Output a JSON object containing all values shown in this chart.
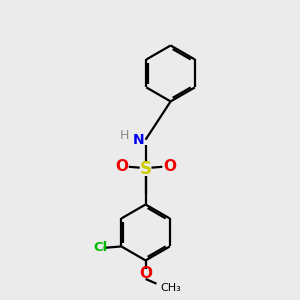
{
  "background_color": "#ebebeb",
  "bond_color": "#000000",
  "N_color": "#0000ee",
  "S_color": "#cccc00",
  "O_color": "#ee0000",
  "Cl_color": "#00bb00",
  "H_color": "#888888",
  "methyl_color": "#000000",
  "line_width": 1.6,
  "figsize": [
    3.0,
    3.0
  ],
  "dpi": 100,
  "xlim": [
    0,
    10
  ],
  "ylim": [
    0,
    10
  ]
}
